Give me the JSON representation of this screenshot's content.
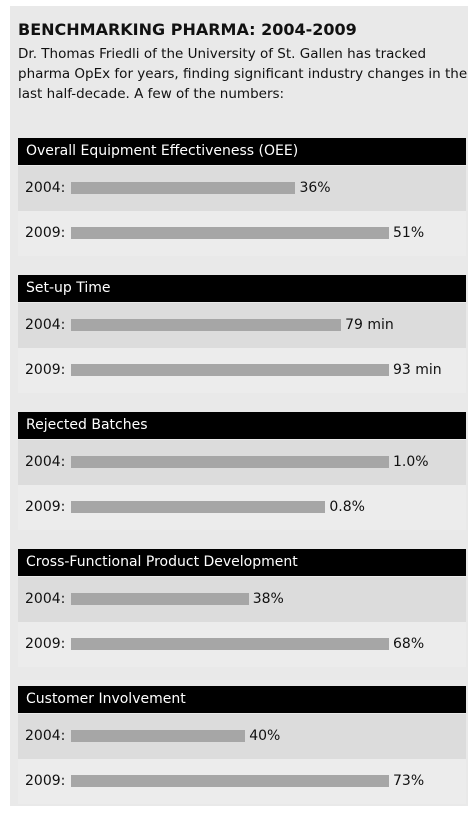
{
  "title": "BENCHMARKING PHARMA: 2004-2009",
  "subtitle": "Dr. Thomas Friedli of the University of St. Gallen has tracked pharma OpEx for years, finding significant industry changes in the last half-decade. A few of the numbers:",
  "chart_data": [
    {
      "type": "bar",
      "title": "Overall Equipment Effectiveness (OEE)",
      "categories": [
        "2004:",
        "2009:"
      ],
      "values": [
        36,
        51
      ],
      "value_labels": [
        "36%",
        "51%"
      ],
      "color": "#a6a6a6"
    },
    {
      "type": "bar",
      "title": "Set-up Time",
      "categories": [
        "2004:",
        "2009:"
      ],
      "values": [
        79,
        93
      ],
      "value_labels": [
        "79 min",
        "93 min"
      ],
      "color": "#a6a6a6"
    },
    {
      "type": "bar",
      "title": "Rejected Batches",
      "categories": [
        "2004:",
        "2009:"
      ],
      "values": [
        1.0,
        0.8
      ],
      "value_labels": [
        "1.0%",
        "0.8%"
      ],
      "color": "#a6a6a6"
    },
    {
      "type": "bar",
      "title": "Cross-Functional Product Development",
      "categories": [
        "2004:",
        "2009:"
      ],
      "values": [
        38,
        68
      ],
      "value_labels": [
        "38%",
        "68%"
      ],
      "color": "#a6a6a6"
    },
    {
      "type": "bar",
      "title": "Customer Involvement",
      "categories": [
        "2004:",
        "2009:"
      ],
      "values": [
        40,
        73
      ],
      "value_labels": [
        "40%",
        "73%"
      ],
      "color": "#a6a6a6"
    }
  ]
}
